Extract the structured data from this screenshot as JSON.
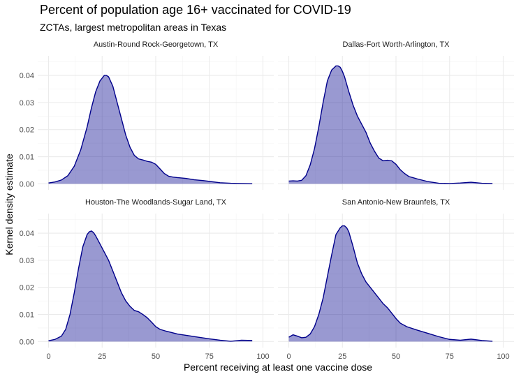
{
  "title": "Percent of population age 16+ vaccinated for COVID-19",
  "subtitle": "ZCTAs, largest metropolitan areas in Texas",
  "colors": {
    "fill": "#00008b",
    "line": "#00008b",
    "grid": "#ebebeb"
  },
  "chart_data": {
    "type": "area",
    "xlabel": "Percent receiving at least one vaccine dose",
    "ylabel": "Kernel density estimate",
    "xlim": [
      0,
      100
    ],
    "ylim": [
      0,
      0.045
    ],
    "x_ticks": [
      0,
      25,
      50,
      75,
      100
    ],
    "x_tick_labels": [
      "0",
      "25",
      "50",
      "75",
      "100"
    ],
    "y_ticks": [
      0,
      0.01,
      0.02,
      0.03,
      0.04
    ],
    "y_tick_labels": [
      "0.00",
      "0.01",
      "0.02",
      "0.03",
      "0.04"
    ],
    "grid": true,
    "panels": [
      {
        "label": "Austin-Round Rock-Georgetown, TX",
        "x": [
          0,
          3,
          6,
          9,
          12,
          15,
          18,
          20,
          22,
          24,
          26,
          27,
          28,
          30,
          32,
          34,
          36,
          38,
          40,
          42,
          44,
          46,
          48,
          50,
          52,
          54,
          56,
          58,
          60,
          64,
          68,
          72,
          76,
          80,
          85,
          90,
          95
        ],
        "y": [
          0.0003,
          0.0007,
          0.0014,
          0.003,
          0.0065,
          0.0125,
          0.021,
          0.028,
          0.034,
          0.038,
          0.04,
          0.04,
          0.0395,
          0.036,
          0.03,
          0.024,
          0.018,
          0.0135,
          0.0105,
          0.0092,
          0.0088,
          0.0083,
          0.008,
          0.0072,
          0.0055,
          0.0038,
          0.0028,
          0.0025,
          0.0023,
          0.002,
          0.0015,
          0.0012,
          0.0008,
          0.0004,
          0.0002,
          0.0001,
          0.0
        ]
      },
      {
        "label": "Dallas-Fort Worth-Arlington, TX",
        "x": [
          0,
          2,
          4,
          6,
          8,
          10,
          12,
          14,
          16,
          18,
          20,
          22,
          23,
          24,
          25,
          26,
          28,
          30,
          32,
          34,
          36,
          38,
          40,
          42,
          44,
          46,
          48,
          50,
          52,
          54,
          56,
          60,
          65,
          70,
          75,
          80,
          85,
          90,
          95
        ],
        "y": [
          0.001,
          0.0011,
          0.001,
          0.0013,
          0.003,
          0.007,
          0.013,
          0.021,
          0.03,
          0.038,
          0.042,
          0.0435,
          0.0435,
          0.043,
          0.0415,
          0.0395,
          0.034,
          0.029,
          0.025,
          0.022,
          0.019,
          0.015,
          0.012,
          0.0095,
          0.0085,
          0.0087,
          0.0085,
          0.0072,
          0.0052,
          0.0038,
          0.0027,
          0.0018,
          0.0008,
          0.0002,
          0.0001,
          0.0003,
          0.0006,
          0.0002,
          0.0001
        ]
      },
      {
        "label": "Houston-The Woodlands-Sugar Land, TX",
        "x": [
          0,
          3,
          6,
          8,
          10,
          12,
          14,
          16,
          18,
          19,
          20,
          21,
          22,
          24,
          26,
          28,
          30,
          32,
          34,
          36,
          38,
          40,
          42,
          44,
          46,
          48,
          50,
          52,
          55,
          60,
          65,
          70,
          75,
          80,
          85,
          90,
          95
        ],
        "y": [
          0.0003,
          0.0008,
          0.002,
          0.0045,
          0.01,
          0.018,
          0.027,
          0.035,
          0.0395,
          0.0405,
          0.0408,
          0.0402,
          0.039,
          0.036,
          0.033,
          0.03,
          0.026,
          0.022,
          0.018,
          0.015,
          0.013,
          0.0115,
          0.011,
          0.01,
          0.0088,
          0.0072,
          0.0055,
          0.0045,
          0.0038,
          0.0028,
          0.0022,
          0.0016,
          0.001,
          0.0005,
          0.0001,
          0.0005,
          0.0004
        ]
      },
      {
        "label": "San Antonio-New Braunfels, TX",
        "x": [
          0,
          2,
          4,
          6,
          8,
          10,
          12,
          14,
          16,
          18,
          20,
          22,
          24,
          25,
          26,
          27,
          28,
          30,
          32,
          34,
          36,
          38,
          40,
          42,
          44,
          46,
          48,
          50,
          52,
          55,
          60,
          65,
          70,
          75,
          80,
          85,
          90,
          95
        ],
        "y": [
          0.0016,
          0.0025,
          0.002,
          0.0014,
          0.0016,
          0.0028,
          0.0055,
          0.01,
          0.016,
          0.024,
          0.032,
          0.0395,
          0.042,
          0.0427,
          0.0427,
          0.042,
          0.0405,
          0.035,
          0.029,
          0.025,
          0.022,
          0.02,
          0.018,
          0.016,
          0.014,
          0.0125,
          0.0105,
          0.0085,
          0.0068,
          0.0055,
          0.0042,
          0.003,
          0.0018,
          0.0008,
          0.0005,
          0.0009,
          0.0004,
          0.0001
        ]
      }
    ]
  }
}
